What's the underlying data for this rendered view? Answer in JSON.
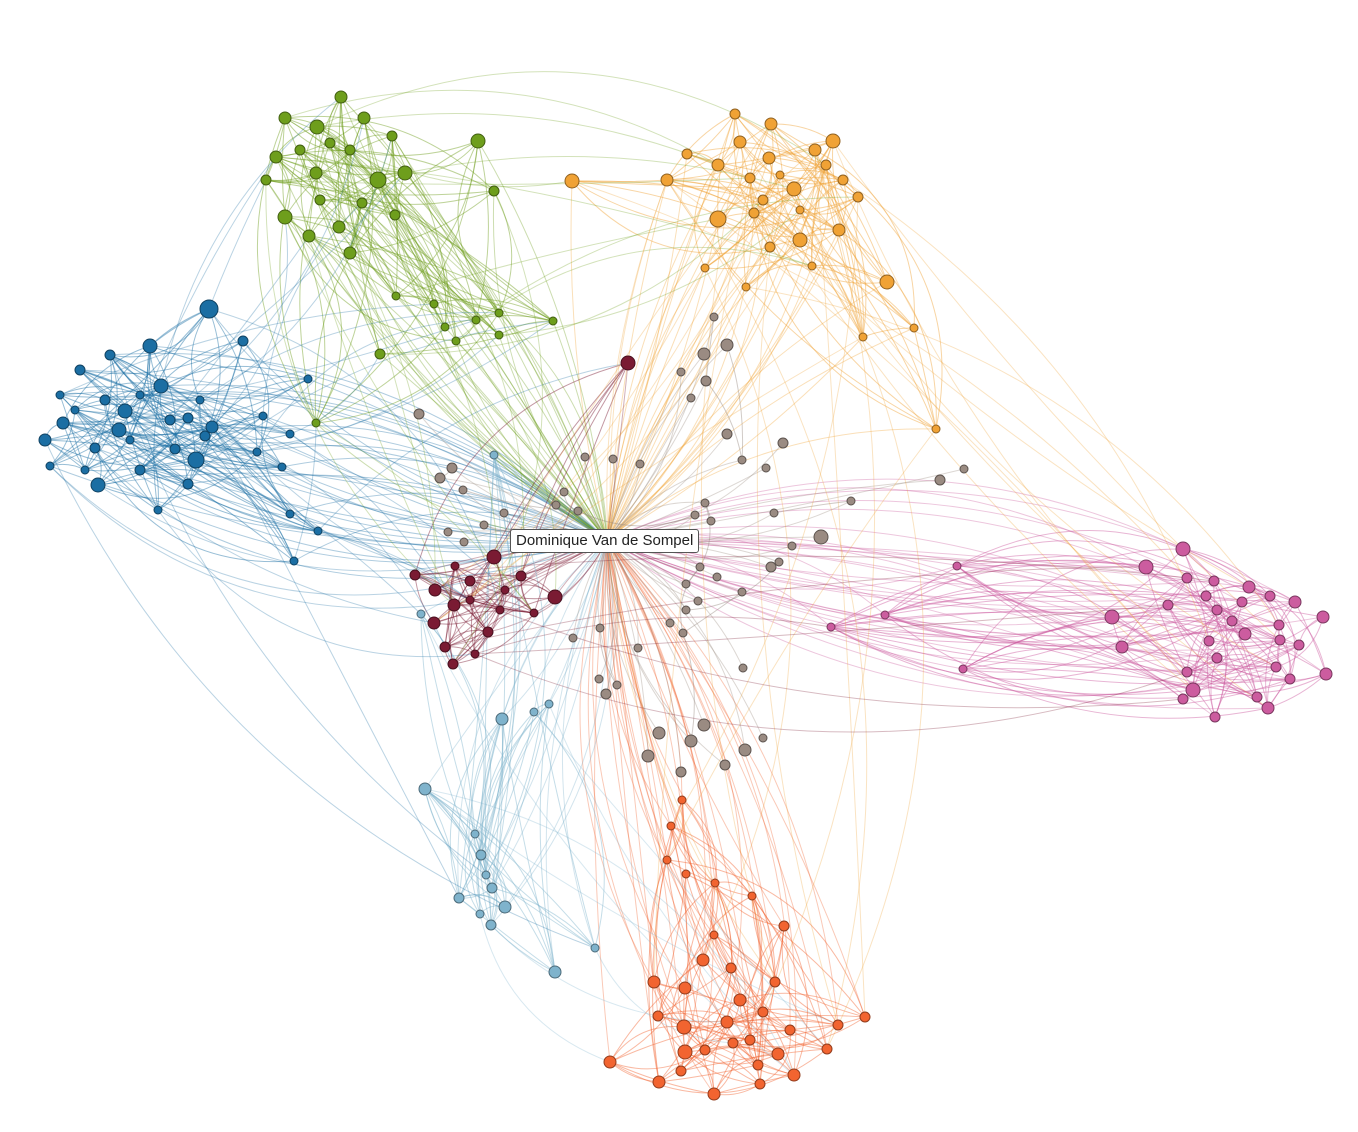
{
  "graph": {
    "center_label": "Dominique Van de Sompel",
    "clusters": [
      {
        "id": "blue",
        "color": "#1b6ea3"
      },
      {
        "id": "green",
        "color": "#6e9e1c"
      },
      {
        "id": "orange",
        "color": "#f0a235"
      },
      {
        "id": "pink",
        "color": "#cc5c9f"
      },
      {
        "id": "red",
        "color": "#f26430"
      },
      {
        "id": "lightblue",
        "color": "#7fb3cc"
      },
      {
        "id": "maroon",
        "color": "#7a1b33"
      },
      {
        "id": "gray",
        "color": "#9a8b82"
      }
    ]
  }
}
